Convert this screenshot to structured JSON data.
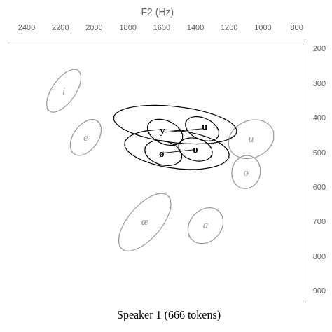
{
  "chart_data": {
    "type": "ellipse",
    "title": "Speaker 1 (666 tokens)",
    "x_label": "F2 (Hz)",
    "xlim": [
      2500,
      750
    ],
    "ylim": [
      930,
      175
    ],
    "xticks": [
      2400,
      2200,
      2000,
      1800,
      1600,
      1400,
      1200,
      1000,
      800
    ],
    "yticks": [
      200,
      300,
      400,
      500,
      600,
      700,
      800,
      900
    ],
    "grid": false,
    "ellipses": [
      {
        "x": 1520,
        "y": 418,
        "width": 730,
        "height": 105,
        "angle": -3,
        "color": "#000000"
      },
      {
        "x": 1510,
        "y": 490,
        "width": 620,
        "height": 110,
        "angle": -3,
        "color": "#000000"
      },
      {
        "x": 2180,
        "y": 320,
        "width": 220,
        "height": 90,
        "angle": 25,
        "color": "#999999"
      },
      {
        "x": 2050,
        "y": 455,
        "width": 190,
        "height": 90,
        "angle": 18,
        "color": "#999999"
      },
      {
        "x": 1580,
        "y": 440,
        "width": 210,
        "height": 70,
        "angle": -8,
        "color": "#000000"
      },
      {
        "x": 1360,
        "y": 430,
        "width": 200,
        "height": 65,
        "angle": -8,
        "color": "#000000"
      },
      {
        "x": 1590,
        "y": 500,
        "width": 220,
        "height": 70,
        "angle": -5,
        "color": "#000000"
      },
      {
        "x": 1400,
        "y": 490,
        "width": 200,
        "height": 65,
        "angle": -5,
        "color": "#000000"
      },
      {
        "x": 1700,
        "y": 700,
        "width": 330,
        "height": 120,
        "angle": 22,
        "color": "#999999"
      },
      {
        "x": 1340,
        "y": 710,
        "width": 210,
        "height": 100,
        "angle": 8,
        "color": "#999999"
      },
      {
        "x": 1070,
        "y": 460,
        "width": 270,
        "height": 110,
        "angle": 5,
        "color": "#999999"
      },
      {
        "x": 1100,
        "y": 555,
        "width": 170,
        "height": 95,
        "angle": 3,
        "color": "#999999"
      }
    ],
    "lines": [
      {
        "x1": 1580,
        "y1": 440,
        "x2": 1360,
        "y2": 430,
        "color": "#000000"
      },
      {
        "x1": 1590,
        "y1": 500,
        "x2": 1400,
        "y2": 490,
        "color": "#000000"
      }
    ],
    "annotations": [
      {
        "text": "i",
        "x": 2180,
        "y": 322,
        "speaker": 2,
        "color": "#999999"
      },
      {
        "text": "e",
        "x": 2050,
        "y": 457,
        "speaker": 2,
        "color": "#999999"
      },
      {
        "text": "y",
        "x": 1595,
        "y": 437,
        "speaker": 1,
        "color": "#000000"
      },
      {
        "text": "u",
        "x": 1345,
        "y": 425,
        "speaker": 1,
        "color": "#000000"
      },
      {
        "text": "ø",
        "x": 1600,
        "y": 503,
        "speaker": 1,
        "color": "#000000"
      },
      {
        "text": "o",
        "x": 1400,
        "y": 492,
        "speaker": 1,
        "color": "#000000"
      },
      {
        "text": "æ",
        "x": 1700,
        "y": 700,
        "speaker": 2,
        "color": "#999999"
      },
      {
        "text": "a",
        "x": 1340,
        "y": 710,
        "speaker": 2,
        "color": "#999999"
      },
      {
        "text": "u",
        "x": 1070,
        "y": 460,
        "speaker": 2,
        "color": "#999999"
      },
      {
        "text": "o",
        "x": 1100,
        "y": 558,
        "speaker": 2,
        "color": "#999999"
      }
    ]
  }
}
